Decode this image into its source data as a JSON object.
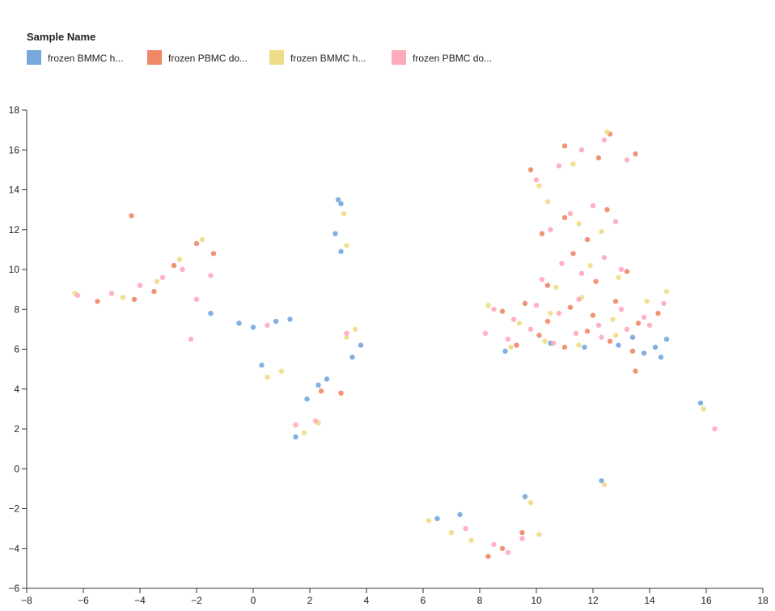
{
  "chart_data": {
    "type": "scatter",
    "legend_title": "Sample Name",
    "xlim": [
      -8,
      18
    ],
    "xticks": [
      {
        "value": -8,
        "label": "−8"
      },
      {
        "value": -6,
        "label": "−6"
      },
      {
        "value": -4,
        "label": "−4"
      },
      {
        "value": -2,
        "label": "−2"
      },
      0,
      2,
      4,
      6,
      8,
      10,
      12,
      14,
      16,
      18
    ],
    "ylim": [
      -6,
      18
    ],
    "yticks": [
      {
        "value": -6,
        "label": "−6"
      },
      {
        "value": -4,
        "label": "−4"
      },
      {
        "value": -2,
        "label": "−2"
      },
      0,
      2,
      4,
      6,
      8,
      10,
      12,
      14,
      16,
      18
    ],
    "series": [
      {
        "name": "frozen BMMC h...",
        "color": "#76a8dc",
        "x": [
          12.9,
          13.4,
          13.8,
          14.2,
          14.6,
          14.4,
          10.5,
          11.7,
          8.9,
          -1.5,
          -0.5,
          0,
          1.3,
          0.8,
          2.6,
          2.3,
          3.8,
          3.5,
          3.1,
          2.9,
          3.1,
          1.5,
          0.3,
          1.9,
          6.5,
          7.3,
          9.6,
          15.8,
          12.3,
          3
        ],
        "values": [
          6.2,
          6.6,
          5.8,
          6.1,
          6.5,
          5.6,
          6.3,
          6.1,
          5.9,
          7.8,
          7.3,
          7.1,
          7.5,
          7.4,
          4.5,
          4.2,
          6.2,
          5.6,
          13.3,
          11.8,
          10.9,
          1.6,
          5.2,
          3.5,
          -2.5,
          -2.3,
          -1.4,
          3.3,
          -0.6,
          13.5
        ]
      },
      {
        "name": "frozen PBMC do...",
        "color": "#ee8866",
        "x": [
          8.8,
          9.6,
          10.4,
          11.2,
          12,
          12.8,
          13.6,
          14.3,
          9.3,
          10.1,
          11,
          11.8,
          12.6,
          13.4,
          10.4,
          11.3,
          12.1,
          13.2,
          10.2,
          11,
          11.8,
          12.5,
          9.8,
          11,
          12.2,
          12.6,
          13.5,
          -4.2,
          -3.5,
          -2.8,
          -2,
          -1.4,
          -5.5,
          -4.3,
          2.4,
          3.1,
          8.8,
          9.5,
          8.3,
          13.5
        ],
        "values": [
          7.9,
          8.3,
          7.4,
          8.1,
          7.7,
          8.4,
          7.3,
          7.8,
          6.2,
          6.7,
          6.1,
          6.9,
          6.4,
          5.9,
          9.2,
          10.8,
          9.4,
          9.9,
          11.8,
          12.6,
          11.5,
          13,
          15,
          16.2,
          15.6,
          16.8,
          15.8,
          8.5,
          8.9,
          10.2,
          11.3,
          10.8,
          8.4,
          12.7,
          3.9,
          3.8,
          -4,
          -3.2,
          -4.4,
          4.9
        ]
      },
      {
        "name": "frozen BMMC h...",
        "color": "#eedd88",
        "x": [
          8.3,
          9.4,
          10.5,
          11.6,
          12.7,
          13.9,
          14.6,
          9.1,
          10.3,
          11.5,
          12.8,
          10.7,
          11.9,
          12.9,
          11.5,
          12.3,
          10.4,
          11.3,
          12.5,
          10.1,
          -6.3,
          -4.6,
          -3.4,
          -2.6,
          -1.8,
          3.2,
          3.3,
          0.5,
          1,
          1.8,
          2.3,
          3.3,
          3.6,
          6.2,
          7,
          7.7,
          9.8,
          10.1,
          15.9,
          12.4
        ],
        "values": [
          8.2,
          7.3,
          7.8,
          8.6,
          7.5,
          8.4,
          8.9,
          6.1,
          6.4,
          6.2,
          6.7,
          9.1,
          10.2,
          9.6,
          12.3,
          11.9,
          13.4,
          15.3,
          16.9,
          14.2,
          8.8,
          8.6,
          9.4,
          10.5,
          11.5,
          12.8,
          11.2,
          4.6,
          4.9,
          1.8,
          2.3,
          6.6,
          7,
          -2.6,
          -3.2,
          -3.6,
          -1.7,
          -3.3,
          3,
          -0.8
        ]
      },
      {
        "name": "frozen PBMC do...",
        "color": "#ffaabb",
        "x": [
          8.5,
          9.2,
          10,
          10.8,
          11.5,
          12.2,
          13,
          13.8,
          14.5,
          8.2,
          9,
          9.8,
          10.6,
          11.4,
          12.3,
          13.2,
          14,
          10.2,
          10.9,
          11.6,
          12.4,
          13,
          10.5,
          11.2,
          12,
          12.8,
          10,
          10.8,
          11.6,
          12.4,
          13.2,
          -5,
          -4,
          -3.2,
          -2.5,
          -2,
          -6.2,
          -1.5,
          -2.2,
          0.5,
          1.5,
          2.2,
          3.3,
          8.5,
          9,
          9.5,
          7.5,
          16.3
        ],
        "values": [
          8,
          7.5,
          8.2,
          7.8,
          8.5,
          7.2,
          8,
          7.6,
          8.3,
          6.8,
          6.5,
          7,
          6.3,
          6.8,
          6.6,
          7,
          7.2,
          9.5,
          10.3,
          9.8,
          10.6,
          10,
          12,
          12.8,
          13.2,
          12.4,
          14.5,
          15.2,
          16,
          16.5,
          15.5,
          8.8,
          9.2,
          9.6,
          10,
          8.5,
          8.7,
          9.7,
          6.5,
          7.2,
          2.2,
          2.4,
          6.8,
          -3.8,
          -4.2,
          -3.5,
          -3,
          2
        ]
      }
    ]
  }
}
